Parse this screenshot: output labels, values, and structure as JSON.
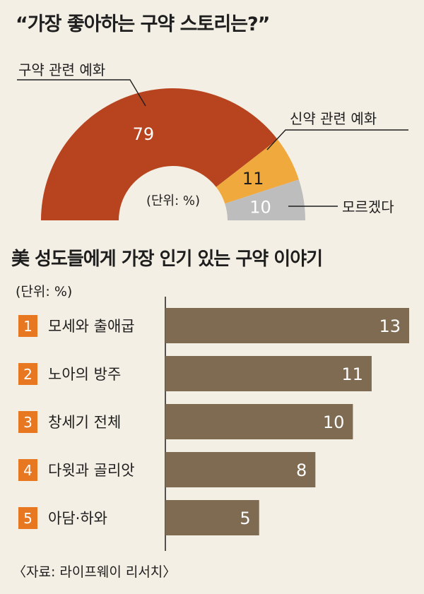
{
  "titles": {
    "pie": "“가장 좋아하는 구약 스토리는?”",
    "bar": "美 성도들에게 가장 인기 있는 구약 이야기"
  },
  "units": {
    "pie": "(단위: %)",
    "bar": "(단위: %)"
  },
  "source": "〈자료: 라이프웨이 리서치〉",
  "colors": {
    "background": "#f4efe4",
    "pie_old_testament": "#b8441f",
    "pie_new_testament": "#f0a93c",
    "pie_unknown": "#bdbdbd",
    "bar": "#7e6b52",
    "rank_badge": "#e87722"
  },
  "chart_data": [
    {
      "type": "pie",
      "shape": "semi-donut",
      "title": "“가장 좋아하는 구약 스토리는?”",
      "unit": "(단위: %)",
      "slices": [
        {
          "label": "구약 관련 예화",
          "value": 79
        },
        {
          "label": "신약 관련 예화",
          "value": 11
        },
        {
          "label": "모르겠다",
          "value": 10
        }
      ]
    },
    {
      "type": "bar",
      "orientation": "horizontal",
      "title": "美 성도들에게 가장 인기 있는 구약 이야기",
      "unit": "(단위: %)",
      "ranks": [
        "1",
        "2",
        "3",
        "4",
        "5"
      ],
      "categories": [
        "모세와 출애굽",
        "노아의 방주",
        "창세기 전체",
        "다윗과 골리앗",
        "아담·하와"
      ],
      "values": [
        13,
        11,
        10,
        8,
        5
      ]
    }
  ]
}
